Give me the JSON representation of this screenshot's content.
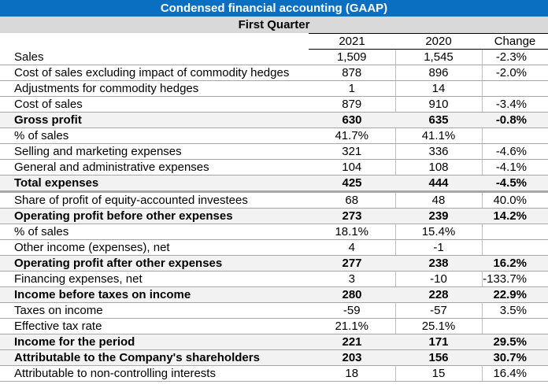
{
  "title": "Condensed financial accounting (GAAP)",
  "subtitle": "First Quarter",
  "columns": [
    "",
    "2021",
    "2020",
    "Change"
  ],
  "rows": [
    {
      "label": "Sales",
      "y2021": "1,509",
      "y2020": "1,545",
      "change": "-2.3%",
      "bold": false
    },
    {
      "label": "Cost of sales excluding impact of commodity hedges",
      "y2021": "878",
      "y2020": "896",
      "change": "-2.0%",
      "bold": false
    },
    {
      "label": "Adjustments for commodity hedges",
      "y2021": "1",
      "y2020": "14",
      "change": "",
      "bold": false
    },
    {
      "label": "Cost of sales",
      "y2021": "879",
      "y2020": "910",
      "change": "-3.4%",
      "bold": false
    },
    {
      "label": "Gross profit",
      "y2021": "630",
      "y2020": "635",
      "change": "-0.8%",
      "bold": true
    },
    {
      "label": "% of sales",
      "y2021": "41.7%",
      "y2020": "41.1%",
      "change": "",
      "bold": false
    },
    {
      "label": "Selling and marketing expenses",
      "y2021": "321",
      "y2020": "336",
      "change": "-4.6%",
      "bold": false
    },
    {
      "label": "General and administrative expenses",
      "y2021": "104",
      "y2020": "108",
      "change": "-4.1%",
      "bold": false
    },
    {
      "label": "Total expenses",
      "y2021": "425",
      "y2020": "444",
      "change": "-4.5%",
      "bold": true
    },
    {
      "label": "Share of profit of equity-accounted investees",
      "y2021": "68",
      "y2020": "48",
      "change": "40.0%",
      "bold": false
    },
    {
      "label": "Operating profit before other expenses",
      "y2021": "273",
      "y2020": "239",
      "change": "14.2%",
      "bold": true
    },
    {
      "label": "% of sales",
      "y2021": "18.1%",
      "y2020": "15.4%",
      "change": "",
      "bold": false
    },
    {
      "label": "Other income (expenses), net",
      "y2021": "4",
      "y2020": "-1",
      "change": "",
      "bold": false
    },
    {
      "label": "Operating profit after other expenses",
      "y2021": "277",
      "y2020": "238",
      "change": "16.2%",
      "bold": true
    },
    {
      "label": "Financing expenses, net",
      "y2021": "3",
      "y2020": "-10",
      "change": "-133.7%",
      "bold": false
    },
    {
      "label": "Income before taxes on income",
      "y2021": "280",
      "y2020": "228",
      "change": "22.9%",
      "bold": true
    },
    {
      "label": "Taxes on income",
      "y2021": "-59",
      "y2020": "-57",
      "change": "3.5%",
      "bold": false
    },
    {
      "label": "Effective tax rate",
      "y2021": "21.1%",
      "y2020": "25.1%",
      "change": "",
      "bold": false
    },
    {
      "label": "Income for the period",
      "y2021": "221",
      "y2020": "171",
      "change": "29.5%",
      "bold": true
    },
    {
      "label": "Attributable to the Company's shareholders",
      "y2021": "203",
      "y2020": "156",
      "change": "30.7%",
      "bold": true
    },
    {
      "label": "Attributable to non-controlling interests",
      "y2021": "18",
      "y2020": "15",
      "change": "16.4%",
      "bold": false
    }
  ]
}
